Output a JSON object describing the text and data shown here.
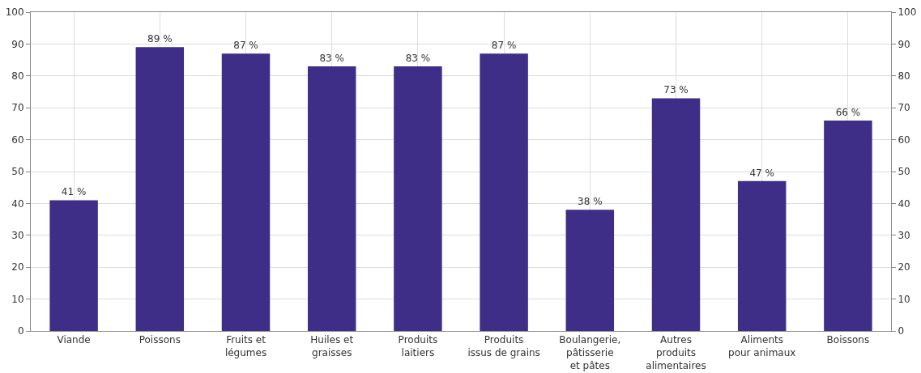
{
  "chart_data": {
    "type": "bar",
    "categories": [
      "Viande",
      "Poissons",
      "Fruits et\nlégumes",
      "Huiles et\ngraisses",
      "Produits\nlaitiers",
      "Produits\nissus de grains",
      "Boulangerie,\npâtisserie\net pâtes",
      "Autres\nproduits\nalimentaires",
      "Aliments\npour animaux",
      "Boissons"
    ],
    "values": [
      41,
      89,
      87,
      83,
      83,
      87,
      38,
      73,
      47,
      66
    ],
    "value_labels": [
      "41 %",
      "89 %",
      "87 %",
      "83 %",
      "83 %",
      "87 %",
      "38 %",
      "73 %",
      "47 %",
      "66 %"
    ],
    "color": "#3f2e87",
    "ylim": [
      0,
      100
    ],
    "yticks": [
      0,
      10,
      20,
      30,
      40,
      50,
      60,
      70,
      80,
      90,
      100
    ],
    "y2lim": [
      0,
      100
    ],
    "y2ticks": [
      0,
      10,
      20,
      30,
      40,
      50,
      60,
      70,
      80,
      90,
      100
    ],
    "grid": true
  }
}
